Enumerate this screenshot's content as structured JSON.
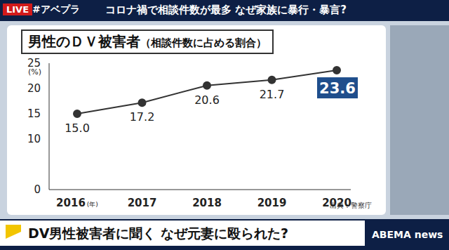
{
  "chart_data": {
    "type": "line",
    "title": "男性のＤＶ被害者",
    "subtitle": "（相談件数に占める割合）",
    "categories": [
      "2016",
      "2017",
      "2018",
      "2019",
      "2020"
    ],
    "x_label": "(年)",
    "y_label": "(%)",
    "values": [
      15.0,
      17.2,
      20.6,
      21.7,
      23.6
    ],
    "value_labels": [
      "15.0",
      "17.2",
      "20.6",
      "21.7",
      "23.6"
    ],
    "color": "#333333",
    "marker": "circle",
    "ylim": [
      0,
      25
    ],
    "yticks": [
      0,
      10,
      15,
      20,
      25
    ],
    "grid": false,
    "data_labels": true,
    "source": "出典：警察庁"
  },
  "broadcast": {
    "live": "LIVE",
    "hashtag": "#アベプラ",
    "headline": "コロナ禍で相談件数が最多 なぜ家族に暴行・暴言?",
    "caption": "DV男性被害者に聞く なぜ元妻に殴られた?",
    "logo": "ABEMA news"
  }
}
